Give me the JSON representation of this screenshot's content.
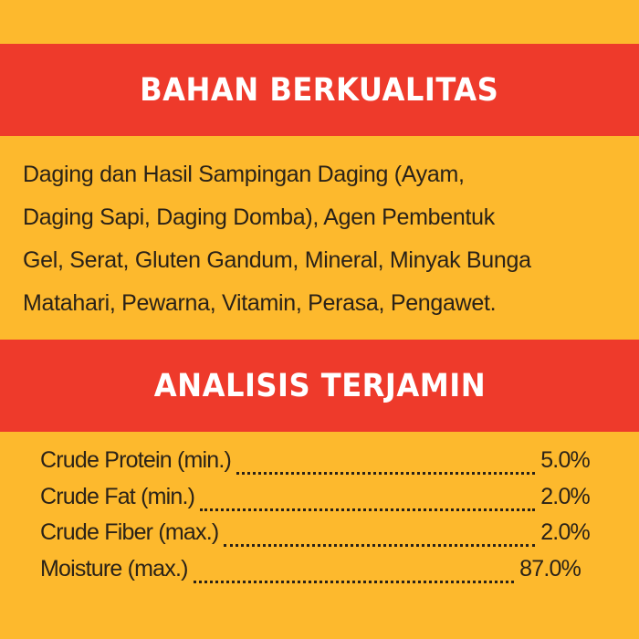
{
  "colors": {
    "background": "#FDB92D",
    "band": "#EE3A2B",
    "heading_text": "#FFFFFF",
    "body_text": "#2A2218"
  },
  "ingredients_section": {
    "title": "BAHAN BERKUALITAS",
    "lines": [
      "Daging dan Hasil Sampingan Daging (Ayam,",
      "Daging Sapi, Daging Domba), Agen Pembentuk",
      "Gel, Serat, Gluten Gandum, Mineral, Minyak Bunga",
      "Matahari, Pewarna, Vitamin, Perasa, Pengawet."
    ]
  },
  "analysis_section": {
    "title": "ANALISIS TERJAMIN",
    "rows": [
      {
        "label": "Crude Protein (min.)",
        "value": "5.0%"
      },
      {
        "label": "Crude Fat (min.)",
        "value": "2.0%"
      },
      {
        "label": "Crude Fiber (max.)",
        "value": "2.0%"
      },
      {
        "label": "Moisture (max.)",
        "value": "87.0%"
      }
    ]
  }
}
